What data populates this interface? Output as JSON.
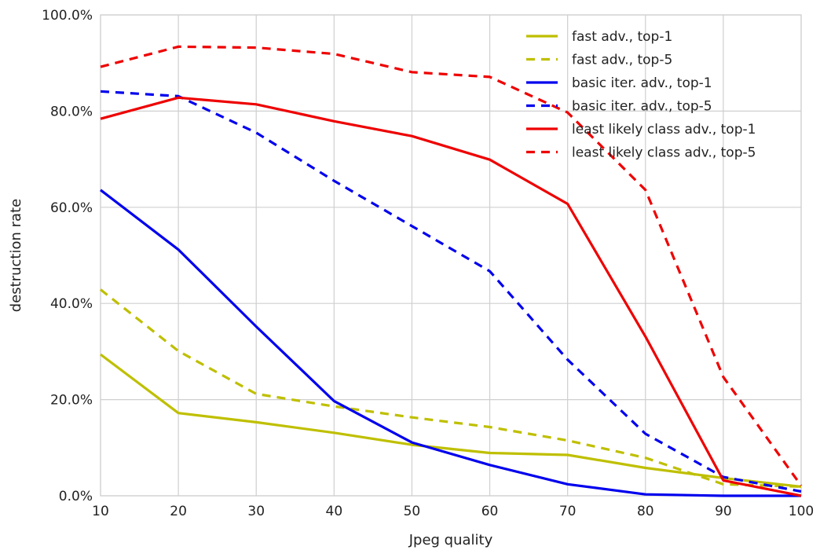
{
  "chart_data": {
    "type": "line",
    "title": "",
    "xlabel": "Jpeg quality",
    "ylabel": "destruction rate",
    "x": [
      10,
      20,
      30,
      40,
      50,
      60,
      70,
      80,
      90,
      100
    ],
    "xlim": [
      10,
      100
    ],
    "ylim": [
      0,
      100
    ],
    "x_ticks": [
      "10",
      "20",
      "30",
      "40",
      "50",
      "60",
      "70",
      "80",
      "90",
      "100"
    ],
    "y_ticks": [
      "0.0%",
      "20.0%",
      "40.0%",
      "60.0%",
      "80.0%",
      "100.0%"
    ],
    "grid": true,
    "legend_position": "top-right",
    "series": [
      {
        "name": "fast adv., top-1",
        "color": "#bfbf00",
        "dash": "solid",
        "values": [
          29.4,
          17.2,
          15.3,
          13.1,
          10.6,
          8.9,
          8.5,
          5.8,
          3.7,
          1.9
        ]
      },
      {
        "name": "fast adv., top-5",
        "color": "#bfbf00",
        "dash": "dashed",
        "values": [
          42.9,
          30.1,
          21.2,
          18.6,
          16.3,
          14.3,
          11.5,
          7.9,
          2.4,
          1.9
        ]
      },
      {
        "name": "basic iter. adv., top-1",
        "color": "#0000ee",
        "dash": "solid",
        "values": [
          63.6,
          51.2,
          35.2,
          19.7,
          11.1,
          6.4,
          2.4,
          0.3,
          0.0,
          0.0
        ]
      },
      {
        "name": "basic iter. adv., top-5",
        "color": "#0000ee",
        "dash": "dashed",
        "values": [
          84.1,
          83.1,
          75.5,
          65.5,
          56.1,
          46.7,
          28.3,
          12.9,
          3.9,
          0.9
        ]
      },
      {
        "name": "least likely class adv., top-1",
        "color": "#ee0000",
        "dash": "solid",
        "values": [
          78.4,
          82.8,
          81.4,
          77.9,
          74.8,
          69.9,
          60.7,
          33.1,
          3.2,
          0.0
        ]
      },
      {
        "name": "least likely class adv., top-5",
        "color": "#ee0000",
        "dash": "dashed",
        "values": [
          89.2,
          93.4,
          93.2,
          91.9,
          88.1,
          87.1,
          79.7,
          63.6,
          24.7,
          2.1
        ]
      }
    ]
  }
}
